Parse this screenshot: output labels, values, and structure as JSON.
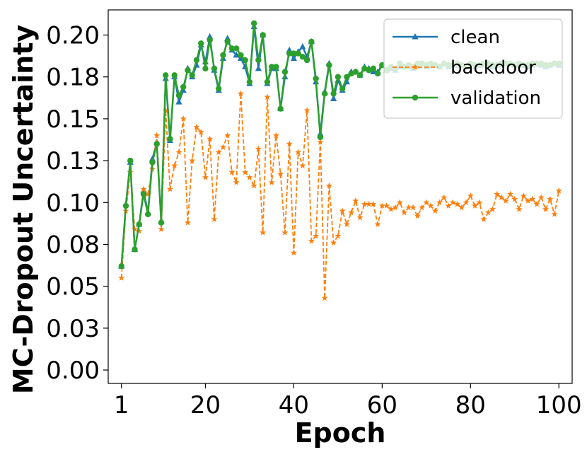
{
  "chart_data": {
    "type": "line",
    "xlabel": "Epoch",
    "ylabel": "MC-Dropout Uncertainty",
    "xlim": [
      -2,
      103
    ],
    "ylim": [
      -0.008,
      0.215
    ],
    "xticks": [
      1,
      20,
      40,
      60,
      80,
      100
    ],
    "xtick_labels": [
      "1",
      "20",
      "40",
      "60",
      "80",
      "100"
    ],
    "yticks": [
      0.0,
      0.025,
      0.05,
      0.075,
      0.1,
      0.125,
      0.15,
      0.175,
      0.2
    ],
    "ytick_labels": [
      "0.00",
      "0.03",
      "0.05",
      "0.08",
      "0.10",
      "0.13",
      "0.15",
      "0.18",
      "0.20"
    ],
    "grid": false,
    "legend_position": "top-right",
    "x": [
      1,
      2,
      3,
      4,
      5,
      6,
      7,
      8,
      9,
      10,
      11,
      12,
      13,
      14,
      15,
      16,
      17,
      18,
      19,
      20,
      21,
      22,
      23,
      24,
      25,
      26,
      27,
      28,
      29,
      30,
      31,
      32,
      33,
      34,
      35,
      36,
      37,
      38,
      39,
      40,
      41,
      42,
      43,
      44,
      45,
      46,
      47,
      48,
      49,
      50,
      51,
      52,
      53,
      54,
      55,
      56,
      57,
      58,
      59,
      60,
      61,
      62,
      63,
      64,
      65,
      66,
      67,
      68,
      69,
      70,
      71,
      72,
      73,
      74,
      75,
      76,
      77,
      78,
      79,
      80,
      81,
      82,
      83,
      84,
      85,
      86,
      87,
      88,
      89,
      90,
      91,
      92,
      93,
      94,
      95,
      96,
      97,
      98,
      99,
      100
    ],
    "series": [
      {
        "name": "clean",
        "color": "#1f77b4",
        "linestyle": "solid",
        "marker": "triangle",
        "values": [
          0.062,
          0.099,
          0.124,
          0.072,
          0.087,
          0.107,
          0.094,
          0.126,
          0.136,
          0.089,
          0.174,
          0.137,
          0.175,
          0.16,
          0.167,
          0.18,
          0.175,
          0.182,
          0.194,
          0.184,
          0.199,
          0.179,
          0.167,
          0.186,
          0.198,
          0.191,
          0.188,
          0.186,
          0.181,
          0.171,
          0.205,
          0.18,
          0.2,
          0.171,
          0.18,
          0.18,
          0.156,
          0.175,
          0.191,
          0.186,
          0.19,
          0.193,
          0.187,
          0.196,
          0.172,
          0.141,
          0.166,
          0.183,
          0.162,
          0.173,
          0.167,
          0.172,
          0.178,
          0.178,
          0.176,
          0.181,
          0.18,
          0.178,
          0.178,
          0.182,
          0.179,
          0.18,
          0.179,
          0.181,
          0.181,
          0.181,
          0.18,
          0.181,
          0.183,
          0.181,
          0.182,
          0.182,
          0.181,
          0.183,
          0.181,
          0.182,
          0.182,
          0.182,
          0.181,
          0.183,
          0.181,
          0.182,
          0.182,
          0.183,
          0.181,
          0.182,
          0.182,
          0.183,
          0.183,
          0.182,
          0.182,
          0.182,
          0.181,
          0.182,
          0.183,
          0.182,
          0.181,
          0.182,
          0.183,
          0.182
        ]
      },
      {
        "name": "backdoor",
        "color": "#ff7f0e",
        "linestyle": "dashed",
        "marker": "star",
        "values": [
          0.055,
          0.095,
          0.118,
          0.084,
          0.083,
          0.108,
          0.105,
          0.12,
          0.14,
          0.084,
          0.155,
          0.108,
          0.122,
          0.13,
          0.15,
          0.088,
          0.125,
          0.145,
          0.142,
          0.115,
          0.138,
          0.09,
          0.13,
          0.133,
          0.14,
          0.118,
          0.112,
          0.165,
          0.118,
          0.115,
          0.11,
          0.132,
          0.082,
          0.163,
          0.112,
          0.14,
          0.117,
          0.082,
          0.135,
          0.07,
          0.13,
          0.122,
          0.155,
          0.077,
          0.08,
          0.136,
          0.043,
          0.11,
          0.076,
          0.08,
          0.095,
          0.087,
          0.094,
          0.101,
          0.091,
          0.099,
          0.099,
          0.099,
          0.087,
          0.098,
          0.098,
          0.096,
          0.097,
          0.1,
          0.094,
          0.097,
          0.097,
          0.092,
          0.097,
          0.1,
          0.098,
          0.095,
          0.1,
          0.103,
          0.098,
          0.1,
          0.099,
          0.097,
          0.1,
          0.104,
          0.098,
          0.1,
          0.09,
          0.094,
          0.096,
          0.105,
          0.103,
          0.101,
          0.105,
          0.102,
          0.096,
          0.104,
          0.101,
          0.102,
          0.099,
          0.103,
          0.096,
          0.102,
          0.093,
          0.107
        ]
      },
      {
        "name": "validation",
        "color": "#2ca02c",
        "linestyle": "solid",
        "marker": "circle",
        "values": [
          0.062,
          0.098,
          0.125,
          0.072,
          0.087,
          0.105,
          0.093,
          0.124,
          0.135,
          0.088,
          0.176,
          0.138,
          0.176,
          0.164,
          0.169,
          0.179,
          0.176,
          0.185,
          0.195,
          0.18,
          0.197,
          0.18,
          0.168,
          0.188,
          0.196,
          0.192,
          0.192,
          0.188,
          0.185,
          0.172,
          0.207,
          0.185,
          0.2,
          0.172,
          0.181,
          0.181,
          0.156,
          0.178,
          0.189,
          0.189,
          0.189,
          0.187,
          0.185,
          0.196,
          0.174,
          0.139,
          0.165,
          0.182,
          0.165,
          0.175,
          0.168,
          0.175,
          0.177,
          0.178,
          0.176,
          0.18,
          0.179,
          0.18,
          0.177,
          0.182,
          0.179,
          0.181,
          0.18,
          0.183,
          0.181,
          0.182,
          0.181,
          0.183,
          0.183,
          0.182,
          0.183,
          0.182,
          0.181,
          0.183,
          0.182,
          0.182,
          0.183,
          0.182,
          0.181,
          0.183,
          0.182,
          0.182,
          0.183,
          0.183,
          0.182,
          0.182,
          0.183,
          0.183,
          0.183,
          0.182,
          0.183,
          0.182,
          0.182,
          0.183,
          0.183,
          0.183,
          0.182,
          0.182,
          0.183,
          0.183
        ]
      }
    ]
  }
}
